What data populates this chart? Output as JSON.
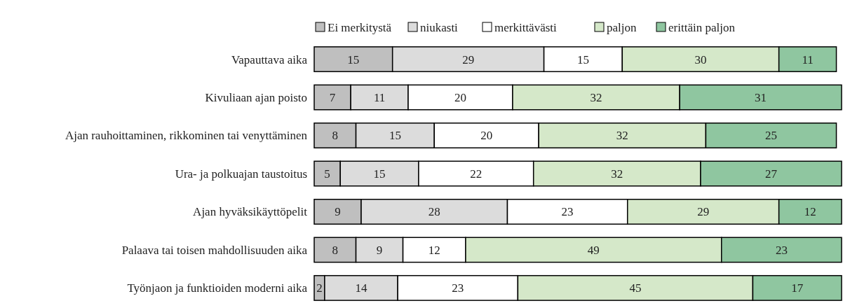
{
  "chart_data": {
    "type": "bar",
    "orientation": "horizontal",
    "stacked": true,
    "data_labels": true,
    "legend": "top",
    "categories": [
      "Vapauttava aika",
      "Kivuliaan ajan poisto",
      "Ajan rauhoittaminen, rikkominen tai venyttäminen",
      "Ura- ja polkuajan taustoitus",
      "Ajan hyväksikäyttöpelit",
      "Palaava tai toisen mahdollisuuden aika",
      "Työnjaon ja funktioiden moderni aika"
    ],
    "series": [
      {
        "name": "Ei merkitystä",
        "color": "#bfbfbf",
        "values": [
          15,
          7,
          8,
          5,
          9,
          8,
          2
        ]
      },
      {
        "name": "niukasti",
        "color": "#dcdcdc",
        "values": [
          29,
          11,
          15,
          15,
          28,
          9,
          14
        ]
      },
      {
        "name": "merkittävästi",
        "color": "#ffffff",
        "values": [
          15,
          20,
          20,
          22,
          23,
          12,
          23
        ]
      },
      {
        "name": "paljon",
        "color": "#d5e8c9",
        "values": [
          30,
          32,
          32,
          32,
          29,
          49,
          45
        ]
      },
      {
        "name": "erittäin paljon",
        "color": "#8fc6a0",
        "values": [
          11,
          31,
          25,
          27,
          12,
          23,
          17
        ]
      }
    ]
  }
}
